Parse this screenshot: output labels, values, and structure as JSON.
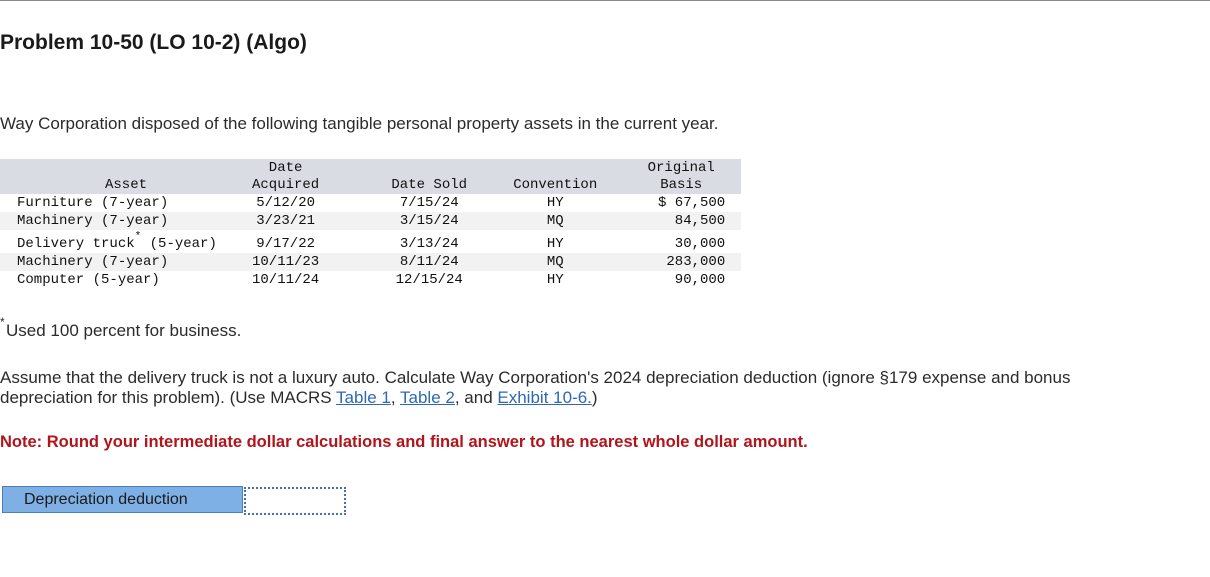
{
  "problem": {
    "title": "Problem 10-50 (LO 10-2) (Algo)",
    "intro": "Way Corporation disposed of the following tangible personal property assets in the current year."
  },
  "table": {
    "headers": {
      "asset": "Asset",
      "acquired_line1": "Date",
      "acquired_line2": "Acquired",
      "sold": "Date Sold",
      "convention": "Convention",
      "basis_line1": "Original",
      "basis_line2": "Basis"
    },
    "rows": [
      {
        "asset": "Furniture (7-year)",
        "asset_suffix": "",
        "acquired": "5/12/20",
        "sold": "7/15/24",
        "convention": "HY",
        "basis": "$ 67,500"
      },
      {
        "asset": "Machinery (7-year)",
        "asset_suffix": "",
        "acquired": "3/23/21",
        "sold": "3/15/24",
        "convention": "MQ",
        "basis": "84,500"
      },
      {
        "asset": "Delivery truck",
        "asset_mark": "*",
        "asset_suffix": " (5-year)",
        "acquired": "9/17/22",
        "sold": "3/13/24",
        "convention": "HY",
        "basis": "30,000"
      },
      {
        "asset": "Machinery (7-year)",
        "asset_suffix": "",
        "acquired": "10/11/23",
        "sold": "8/11/24",
        "convention": "MQ",
        "basis": "283,000"
      },
      {
        "asset": "Computer (5-year)",
        "asset_suffix": "",
        "acquired": "10/11/24",
        "sold": "12/15/24",
        "convention": "HY",
        "basis": "90,000"
      }
    ]
  },
  "footnote": {
    "mark": "*",
    "text": "Used 100 percent for business."
  },
  "question": {
    "text_before": "Assume that the delivery truck is not a luxury auto. Calculate Way Corporation's 2024 depreciation deduction (ignore §179 expense and bonus depreciation for this problem). (Use MACRS ",
    "link_table1": "Table 1",
    "sep1": ", ",
    "link_table2": "Table 2",
    "sep2": ", and ",
    "link_exhibit": "Exhibit 10-6.",
    "text_after": ")"
  },
  "note": "Note: Round your intermediate dollar calculations and final answer to the nearest whole dollar amount.",
  "answer": {
    "label": "Depreciation deduction",
    "value": ""
  }
}
